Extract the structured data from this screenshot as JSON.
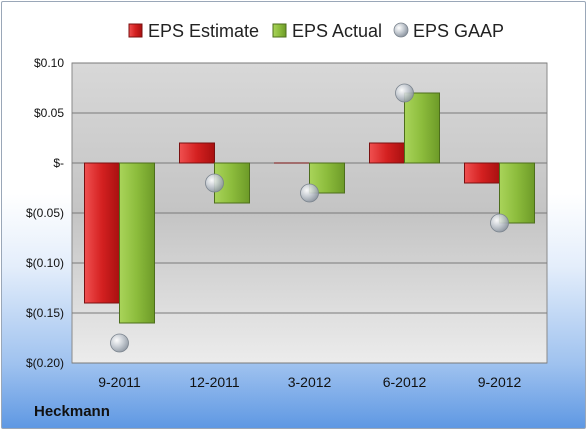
{
  "company": "Heckmann",
  "chart_data": {
    "type": "bar",
    "categories": [
      "9-2011",
      "12-2011",
      "3-2012",
      "6-2012",
      "9-2012"
    ],
    "series": [
      {
        "name": "EPS Estimate",
        "values": [
          -0.14,
          0.02,
          0.0,
          0.02,
          -0.02
        ],
        "color": "#d42a2a"
      },
      {
        "name": "EPS Actual",
        "values": [
          -0.16,
          -0.04,
          -0.03,
          0.07,
          -0.06
        ],
        "color": "#8fbf3f"
      },
      {
        "name": "EPS GAAP",
        "values": [
          -0.18,
          -0.02,
          -0.03,
          0.07,
          -0.06
        ],
        "color": "#b7bfc8",
        "marker": "circle"
      }
    ],
    "ylim": [
      -0.2,
      0.1
    ],
    "yticks": [
      0.1,
      0.05,
      0.0,
      -0.05,
      -0.1,
      -0.15,
      -0.2
    ],
    "ytick_labels": [
      "$0.10",
      "$0.05",
      "$-",
      "$(0.05)",
      "$(0.10)",
      "$(0.15)",
      "$(0.20)"
    ],
    "legend_position": "top",
    "grid": true
  }
}
